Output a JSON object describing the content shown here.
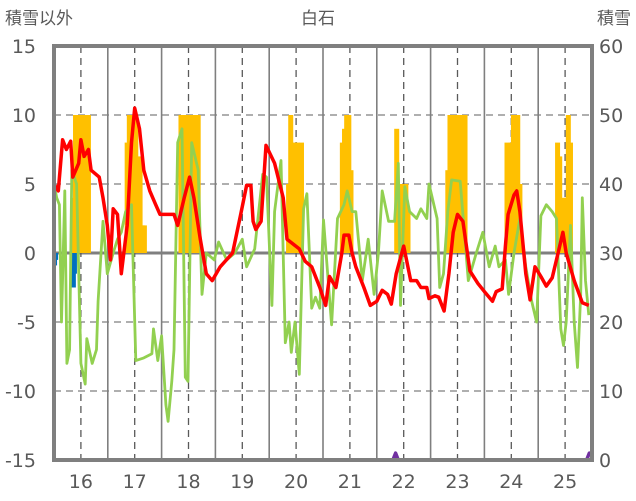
{
  "chart_data": {
    "type": "line",
    "title": "白石",
    "ylabel_left": "積雪以外",
    "ylabel_right": "積雪",
    "xlim": [
      15.5,
      25.5
    ],
    "ylim_left": [
      -15,
      15
    ],
    "ylim_right": [
      0,
      60
    ],
    "x_ticks": [
      "16",
      "17",
      "18",
      "19",
      "20",
      "21",
      "22",
      "23",
      "24",
      "25"
    ],
    "y_ticks_left": [
      "15",
      "10",
      "5",
      "0",
      "-5",
      "-10",
      "-15"
    ],
    "y_ticks_right": [
      "60",
      "50",
      "40",
      "30",
      "20",
      "10",
      "0"
    ],
    "grid": true,
    "colors": {
      "red": "#ff0000",
      "green": "#92d050",
      "orange": "#ffc000",
      "blue": "#0070c0",
      "purple": "#7030a0",
      "axis": "#7f7f7f"
    },
    "series": [
      {
        "name": "orange-bars",
        "type": "bar",
        "axis": "left",
        "color": "#ffc000",
        "points": [
          [
            15.86,
            4
          ],
          [
            15.9,
            10
          ],
          [
            15.94,
            7
          ],
          [
            15.98,
            10
          ],
          [
            16.02,
            10
          ],
          [
            16.06,
            7
          ],
          [
            16.1,
            10
          ],
          [
            16.14,
            10
          ],
          [
            16.86,
            8
          ],
          [
            16.9,
            10
          ],
          [
            16.94,
            10
          ],
          [
            16.98,
            10
          ],
          [
            17.02,
            10
          ],
          [
            17.06,
            5
          ],
          [
            17.1,
            7
          ],
          [
            17.14,
            2
          ],
          [
            17.18,
            2
          ],
          [
            17.86,
            10
          ],
          [
            17.9,
            10
          ],
          [
            17.94,
            10
          ],
          [
            17.98,
            10
          ],
          [
            18.02,
            10
          ],
          [
            18.06,
            10
          ],
          [
            18.1,
            10
          ],
          [
            18.14,
            10
          ],
          [
            18.18,
            10
          ],
          [
            19.86,
            5
          ],
          [
            19.9,
            10
          ],
          [
            19.94,
            6
          ],
          [
            19.98,
            8
          ],
          [
            20.02,
            8
          ],
          [
            20.06,
            3
          ],
          [
            20.1,
            8
          ],
          [
            20.86,
            8
          ],
          [
            20.9,
            9
          ],
          [
            20.94,
            10
          ],
          [
            20.98,
            10
          ],
          [
            21.02,
            6
          ],
          [
            21.87,
            9
          ],
          [
            21.92,
            4
          ],
          [
            21.96,
            5
          ],
          [
            22.0,
            5
          ],
          [
            22.04,
            5
          ],
          [
            22.08,
            3
          ],
          [
            22.82,
            6
          ],
          [
            22.86,
            10
          ],
          [
            22.9,
            10
          ],
          [
            22.94,
            10
          ],
          [
            22.98,
            9
          ],
          [
            23.02,
            10
          ],
          [
            23.06,
            9
          ],
          [
            23.1,
            10
          ],
          [
            23.14,
            10
          ],
          [
            23.92,
            8
          ],
          [
            23.96,
            7
          ],
          [
            24.0,
            8
          ],
          [
            24.04,
            10
          ],
          [
            24.08,
            8
          ],
          [
            24.12,
            10
          ],
          [
            24.16,
            5
          ],
          [
            24.86,
            8
          ],
          [
            24.9,
            7
          ],
          [
            24.94,
            3
          ],
          [
            24.98,
            4
          ],
          [
            25.02,
            4
          ],
          [
            25.06,
            10
          ],
          [
            25.1,
            8
          ]
        ]
      },
      {
        "name": "blue-bars",
        "type": "bar",
        "axis": "left",
        "color": "#0070c0",
        "points": [
          [
            15.51,
            -0.9
          ],
          [
            15.53,
            -0.5
          ],
          [
            15.86,
            -2.5
          ],
          [
            15.88,
            -1.5
          ]
        ]
      },
      {
        "name": "green-line",
        "type": "line",
        "axis": "left",
        "color": "#92d050",
        "points": [
          [
            15.5,
            5
          ],
          [
            15.55,
            4
          ],
          [
            15.6,
            3.5
          ],
          [
            15.64,
            -5
          ],
          [
            15.7,
            4.5
          ],
          [
            15.74,
            -8
          ],
          [
            15.79,
            -7
          ],
          [
            15.83,
            6
          ],
          [
            15.92,
            5
          ],
          [
            16.0,
            -8
          ],
          [
            16.08,
            -9.5
          ],
          [
            16.11,
            -6.2
          ],
          [
            16.21,
            -8
          ],
          [
            16.29,
            -7
          ],
          [
            16.32,
            -3.5
          ],
          [
            16.41,
            2.3
          ],
          [
            16.49,
            -1.5
          ],
          [
            16.6,
            0
          ],
          [
            16.68,
            1
          ],
          [
            16.75,
            1.5
          ],
          [
            16.83,
            3
          ],
          [
            16.94,
            3.5
          ],
          [
            17.02,
            -7.8
          ],
          [
            17.17,
            -7.6
          ],
          [
            17.32,
            -7.3
          ],
          [
            17.35,
            -5.5
          ],
          [
            17.43,
            -7.8
          ],
          [
            17.5,
            -6
          ],
          [
            17.58,
            -11
          ],
          [
            17.62,
            -12.2
          ],
          [
            17.69,
            -9.3
          ],
          [
            17.73,
            -7
          ],
          [
            17.8,
            8
          ],
          [
            17.88,
            9
          ],
          [
            17.94,
            -9
          ],
          [
            17.99,
            -9.3
          ],
          [
            18.06,
            8
          ],
          [
            18.18,
            6
          ],
          [
            18.25,
            -3
          ],
          [
            18.33,
            0
          ],
          [
            18.48,
            -0.5
          ],
          [
            18.56,
            0.8
          ],
          [
            18.71,
            -0.5
          ],
          [
            18.86,
            0
          ],
          [
            19.0,
            1
          ],
          [
            19.08,
            -1
          ],
          [
            19.23,
            0.3
          ],
          [
            19.38,
            5.7
          ],
          [
            19.45,
            5.5
          ],
          [
            19.55,
            -3.8
          ],
          [
            19.6,
            3
          ],
          [
            19.72,
            6.7
          ],
          [
            19.8,
            -6.5
          ],
          [
            19.87,
            -5
          ],
          [
            19.91,
            -7.2
          ],
          [
            19.98,
            -5
          ],
          [
            20.06,
            -8.8
          ],
          [
            20.14,
            3.2
          ],
          [
            20.2,
            4.3
          ],
          [
            20.29,
            -4
          ],
          [
            20.36,
            -3.2
          ],
          [
            20.44,
            -4
          ],
          [
            20.51,
            2.4
          ],
          [
            20.66,
            -5.2
          ],
          [
            20.77,
            2.5
          ],
          [
            20.89,
            3.5
          ],
          [
            20.95,
            4.5
          ],
          [
            21.04,
            3
          ],
          [
            21.11,
            3
          ],
          [
            21.23,
            -2
          ],
          [
            21.34,
            1
          ],
          [
            21.45,
            -3
          ],
          [
            21.53,
            0
          ],
          [
            21.6,
            4.5
          ],
          [
            21.72,
            2.3
          ],
          [
            21.83,
            2.3
          ],
          [
            21.9,
            6.5
          ],
          [
            21.94,
            -3.8
          ],
          [
            22.02,
            4.8
          ],
          [
            22.11,
            3
          ],
          [
            22.24,
            2.5
          ],
          [
            22.32,
            3.2
          ],
          [
            22.43,
            2.5
          ],
          [
            22.47,
            5
          ],
          [
            22.62,
            2.5
          ],
          [
            22.67,
            -2.5
          ],
          [
            22.74,
            -1.5
          ],
          [
            22.82,
            3
          ],
          [
            22.89,
            5.3
          ],
          [
            23.05,
            5.2
          ],
          [
            23.2,
            -2
          ],
          [
            23.35,
            0
          ],
          [
            23.47,
            1.5
          ],
          [
            23.59,
            -1
          ],
          [
            23.7,
            0.5
          ],
          [
            23.77,
            -1
          ],
          [
            23.89,
            -0.5
          ],
          [
            23.95,
            -3
          ],
          [
            24.05,
            0
          ],
          [
            24.16,
            2.5
          ],
          [
            24.27,
            -1
          ],
          [
            24.38,
            -3.5
          ],
          [
            24.47,
            -5
          ],
          [
            24.55,
            2.7
          ],
          [
            24.65,
            3.5
          ],
          [
            24.76,
            3
          ],
          [
            24.84,
            2.5
          ],
          [
            24.92,
            -5.5
          ],
          [
            24.97,
            -6.7
          ],
          [
            25.02,
            -5
          ],
          [
            25.1,
            2
          ],
          [
            25.17,
            -5
          ],
          [
            25.23,
            -8.3
          ],
          [
            25.29,
            -3
          ],
          [
            25.32,
            4
          ],
          [
            25.38,
            -2
          ],
          [
            25.44,
            -4.5
          ]
        ]
      },
      {
        "name": "red-line",
        "type": "line",
        "axis": "left",
        "color": "#ff0000",
        "points": [
          [
            15.5,
            5
          ],
          [
            15.58,
            4.5
          ],
          [
            15.66,
            8.2
          ],
          [
            15.73,
            7.5
          ],
          [
            15.81,
            8.1
          ],
          [
            15.85,
            5.5
          ],
          [
            15.96,
            6.5
          ],
          [
            16.0,
            8.2
          ],
          [
            16.06,
            7
          ],
          [
            16.14,
            7.5
          ],
          [
            16.19,
            6
          ],
          [
            16.34,
            5.5
          ],
          [
            16.41,
            4
          ],
          [
            16.49,
            2
          ],
          [
            16.55,
            -0.5
          ],
          [
            16.6,
            3.2
          ],
          [
            16.68,
            2.8
          ],
          [
            16.75,
            -1.5
          ],
          [
            16.86,
            2
          ],
          [
            16.94,
            8
          ],
          [
            17.0,
            10.5
          ],
          [
            17.09,
            9
          ],
          [
            17.17,
            6
          ],
          [
            17.28,
            4.5
          ],
          [
            17.39,
            3.5
          ],
          [
            17.47,
            2.8
          ],
          [
            17.73,
            2.8
          ],
          [
            17.8,
            2
          ],
          [
            17.92,
            4
          ],
          [
            18.02,
            5.5
          ],
          [
            18.1,
            4
          ],
          [
            18.22,
            1
          ],
          [
            18.33,
            -1.5
          ],
          [
            18.44,
            -2
          ],
          [
            18.59,
            -1
          ],
          [
            18.82,
            0
          ],
          [
            18.97,
            2.8
          ],
          [
            19.08,
            4.9
          ],
          [
            19.16,
            4.9
          ],
          [
            19.2,
            2.3
          ],
          [
            19.25,
            1.7
          ],
          [
            19.35,
            2.3
          ],
          [
            19.44,
            7.8
          ],
          [
            19.6,
            6.5
          ],
          [
            19.76,
            4
          ],
          [
            19.83,
            1
          ],
          [
            20.06,
            0.3
          ],
          [
            20.17,
            -0.6
          ],
          [
            20.29,
            -1
          ],
          [
            20.44,
            -2.5
          ],
          [
            20.55,
            -3.8
          ],
          [
            20.62,
            -1.7
          ],
          [
            20.74,
            -2.5
          ],
          [
            20.85,
            0
          ],
          [
            20.89,
            1.3
          ],
          [
            20.98,
            1.3
          ],
          [
            21.04,
            0
          ],
          [
            21.11,
            -1
          ],
          [
            21.26,
            -2.5
          ],
          [
            21.38,
            -3.8
          ],
          [
            21.5,
            -3.5
          ],
          [
            21.6,
            -2.7
          ],
          [
            21.7,
            -3
          ],
          [
            21.77,
            -3.7
          ],
          [
            21.86,
            -1.5
          ],
          [
            22.0,
            0.5
          ],
          [
            22.13,
            -2
          ],
          [
            22.24,
            -2
          ],
          [
            22.32,
            -2.5
          ],
          [
            22.43,
            -2.5
          ],
          [
            22.47,
            -3.3
          ],
          [
            22.58,
            -3.1
          ],
          [
            22.65,
            -3.2
          ],
          [
            22.75,
            -4.2
          ],
          [
            22.84,
            -1.5
          ],
          [
            22.92,
            1.5
          ],
          [
            23.0,
            2.8
          ],
          [
            23.1,
            2.3
          ],
          [
            23.23,
            -1.3
          ],
          [
            23.38,
            -2.2
          ],
          [
            23.5,
            -2.8
          ],
          [
            23.65,
            -3.5
          ],
          [
            23.72,
            -2.8
          ],
          [
            23.83,
            -2.6
          ],
          [
            23.89,
            0.5
          ],
          [
            23.94,
            2.8
          ],
          [
            24.05,
            4.2
          ],
          [
            24.1,
            4.5
          ],
          [
            24.16,
            3
          ],
          [
            24.27,
            -1.5
          ],
          [
            24.35,
            -3.4
          ],
          [
            24.44,
            -1
          ],
          [
            24.55,
            -1.7
          ],
          [
            24.65,
            -2.4
          ],
          [
            24.76,
            -1.8
          ],
          [
            24.87,
            0
          ],
          [
            24.96,
            1.5
          ],
          [
            25.02,
            0
          ],
          [
            25.17,
            -2
          ],
          [
            25.32,
            -3.6
          ],
          [
            25.44,
            -3.8
          ]
        ]
      },
      {
        "name": "purple-line",
        "type": "line",
        "axis": "right",
        "color": "#7030a0",
        "points": [
          [
            15.5,
            0
          ],
          [
            21.8,
            0
          ],
          [
            21.85,
            1
          ],
          [
            21.9,
            0
          ],
          [
            25.4,
            0
          ],
          [
            25.45,
            1
          ],
          [
            25.5,
            1
          ]
        ]
      }
    ]
  }
}
